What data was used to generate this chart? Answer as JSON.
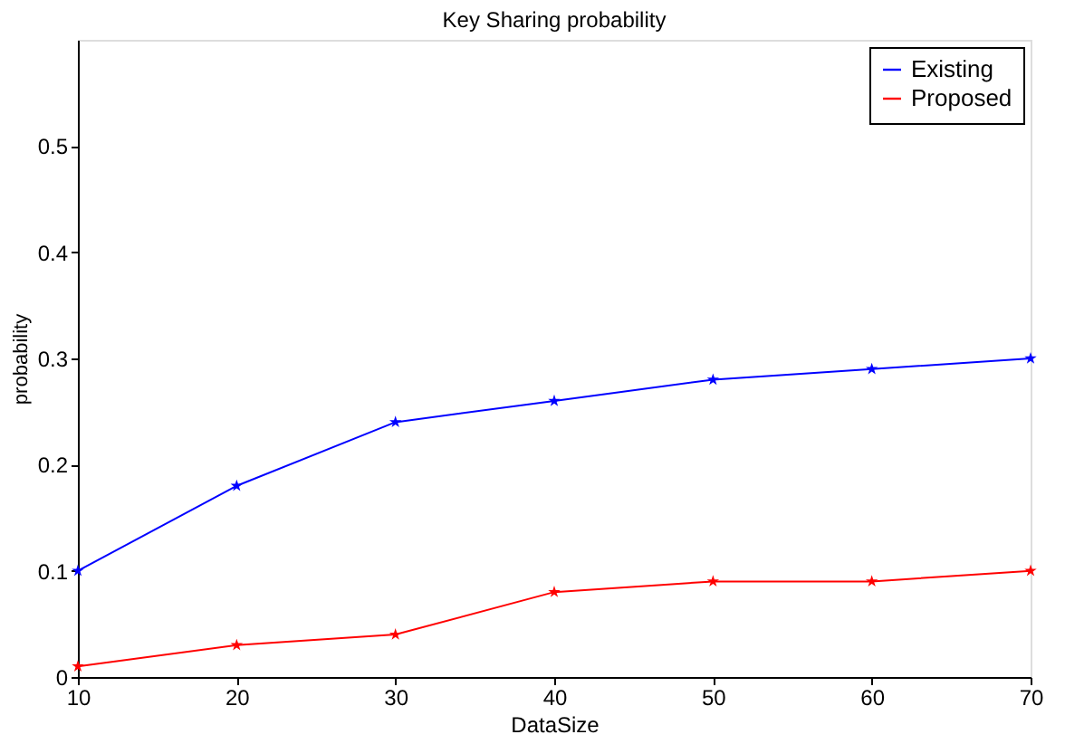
{
  "chart_data": {
    "type": "line",
    "title": "Key Sharing probability",
    "xlabel": "DataSize",
    "ylabel": "probability",
    "x": [
      10,
      20,
      30,
      40,
      50,
      60,
      70
    ],
    "series": [
      {
        "name": "Existing",
        "color": "#0000ff",
        "values": [
          0.1,
          0.18,
          0.24,
          0.26,
          0.28,
          0.29,
          0.3
        ]
      },
      {
        "name": "Proposed",
        "color": "#ff0000",
        "values": [
          0.01,
          0.03,
          0.04,
          0.08,
          0.09,
          0.09,
          0.1
        ]
      }
    ],
    "xlim": [
      10,
      70
    ],
    "xticks": [
      10,
      20,
      30,
      40,
      50,
      60,
      70
    ],
    "ylim": [
      0,
      0.6
    ],
    "yticks": [
      0,
      0.1,
      0.2,
      0.3,
      0.4,
      0.5
    ],
    "legend": "top right",
    "marker": "star",
    "line_style": "solid",
    "grid": false
  }
}
